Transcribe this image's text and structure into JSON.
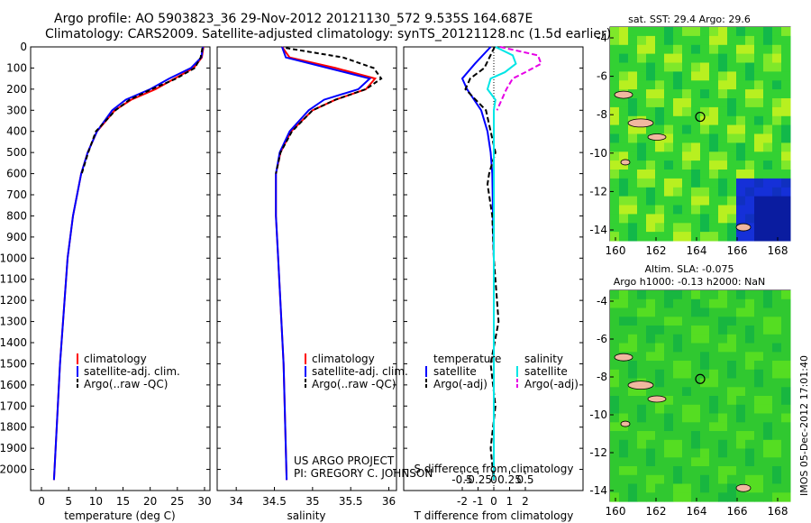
{
  "title_line1": "Argo profile: AO 5903823_36 29-Nov-2012 20121130_572 9.535S 164.687E",
  "title_line2": "Climatology: CARS2009. Satellite-adjusted climatology: synTS_20121128.nc (1.5d earlier)",
  "credit_line1": "US ARGO PROJECT",
  "credit_line2": "PI: GREGORY C. JOHNSON",
  "imos_stamp": "IMOS 05-Dec-2012 17:01:40",
  "depth_ticks": [
    "0",
    "100",
    "200",
    "300",
    "400",
    "500",
    "600",
    "700",
    "800",
    "900",
    "1000",
    "1100",
    "1200",
    "1300",
    "1400",
    "1500",
    "1600",
    "1700",
    "1800",
    "1900",
    "2000"
  ],
  "colors": {
    "climatology": "#ff0000",
    "satellite": "#0000ff",
    "argo": "#000000",
    "sat_salinity": "#00e5e5",
    "argo_salinity": "#e600e6",
    "land": "#f0b8a0",
    "ocean_green": "#22cc22"
  },
  "chart_data": [
    {
      "type": "line",
      "xlabel": "temperature (deg C)",
      "ylim": [
        2100,
        0
      ],
      "xlim": [
        -2,
        31
      ],
      "xticks": [
        "0",
        "5",
        "10",
        "15",
        "20",
        "25",
        "30"
      ],
      "legend": [
        "climatology",
        "satellite-adj. clim.",
        "Argo(..raw -QC)"
      ],
      "series": [
        {
          "name": "climatology",
          "depth": [
            0,
            50,
            100,
            150,
            200,
            250,
            300,
            400,
            500,
            600,
            800,
            1000,
            1500,
            2050
          ],
          "values": [
            29.8,
            29.5,
            28,
            24.5,
            21,
            16.5,
            13.5,
            10.2,
            8.5,
            7.3,
            5.8,
            4.8,
            3.4,
            2.3
          ]
        },
        {
          "name": "satellite-adj. clim.",
          "depth": [
            0,
            50,
            100,
            150,
            200,
            250,
            300,
            400,
            500,
            600,
            800,
            1000,
            1500,
            2050
          ],
          "values": [
            29.7,
            29.4,
            27.5,
            23.5,
            20,
            15.5,
            13,
            10.2,
            8.5,
            7.3,
            5.8,
            4.8,
            3.4,
            2.3
          ]
        },
        {
          "name": "Argo(..raw -QC)",
          "depth": [
            5,
            50,
            100,
            150,
            200,
            250,
            300,
            400,
            500,
            600
          ],
          "values": [
            29.6,
            29.3,
            28.2,
            24.8,
            20.3,
            16.2,
            13.6,
            10,
            8.6,
            7.4
          ]
        }
      ]
    },
    {
      "type": "line",
      "xlabel": "salinity",
      "ylim": [
        2100,
        0
      ],
      "xlim": [
        33.75,
        36.1
      ],
      "xticks": [
        "34",
        "34.5",
        "35",
        "35.5",
        "36"
      ],
      "legend": [
        "climatology",
        "satellite-adj. clim.",
        "Argo(..raw -QC)"
      ],
      "series": [
        {
          "name": "climatology",
          "depth": [
            0,
            50,
            100,
            150,
            200,
            250,
            300,
            400,
            500,
            600,
            800,
            1000,
            1500,
            2050
          ],
          "values": [
            34.6,
            34.7,
            35.3,
            35.82,
            35.7,
            35.3,
            35.0,
            34.72,
            34.58,
            34.52,
            34.52,
            34.55,
            34.62,
            34.66
          ]
        },
        {
          "name": "satellite-adj. clim.",
          "depth": [
            0,
            50,
            100,
            150,
            200,
            250,
            300,
            400,
            500,
            600,
            800,
            1000,
            1500,
            2050
          ],
          "values": [
            34.6,
            34.65,
            35.2,
            35.75,
            35.6,
            35.15,
            34.95,
            34.7,
            34.57,
            34.52,
            34.52,
            34.55,
            34.62,
            34.66
          ]
        },
        {
          "name": "Argo(..raw -QC)",
          "depth": [
            5,
            50,
            100,
            150,
            200,
            250,
            300,
            400,
            500,
            600
          ],
          "values": [
            34.65,
            35.4,
            35.8,
            35.9,
            35.7,
            35.3,
            35.0,
            34.73,
            34.58,
            34.52
          ]
        }
      ]
    },
    {
      "type": "line",
      "xlabel": "T difference from climatology",
      "xlabel2": "S difference from climatology",
      "ylim": [
        2100,
        0
      ],
      "xlim": [
        -2.8,
        2.8
      ],
      "xticks": [
        "-2",
        "-1",
        "0",
        "1",
        "2"
      ],
      "xticks_s": [
        "-0.5",
        "-0.25",
        "0",
        "0.25",
        "0.5"
      ],
      "legend": [
        "temperature",
        "satellite",
        "Argo(-adj)",
        "salinity",
        "satellite",
        "Argo(-adj)"
      ],
      "series": [
        {
          "name": "satellite",
          "depth": [
            0,
            80,
            150,
            200,
            300,
            400,
            500,
            600,
            800,
            1000,
            2050
          ],
          "values": [
            -0.2,
            -1.2,
            -2.0,
            -1.7,
            -0.8,
            -0.4,
            -0.2,
            -0.1,
            -0.05,
            0,
            0
          ]
        },
        {
          "name": "Argo(-adj)",
          "depth": [
            0,
            100,
            150,
            200,
            300,
            400,
            500,
            600,
            650,
            800,
            1000,
            1300,
            1500,
            1700,
            1900,
            2050
          ],
          "values": [
            0.05,
            -0.6,
            -1.5,
            -1.8,
            -0.5,
            -0.2,
            0.1,
            -0.3,
            -0.4,
            -0.1,
            0,
            0.3,
            -0.2,
            0.1,
            -0.2,
            0
          ]
        },
        {
          "name": "satellite",
          "depth": [
            0,
            40,
            80,
            120,
            150,
            200,
            250,
            300,
            400,
            500,
            800,
            1200,
            2050
          ],
          "values": [
            0.1,
            1.2,
            1.4,
            0.7,
            -0.2,
            -0.4,
            0.1,
            0,
            0,
            0,
            0,
            0,
            0
          ]
        },
        {
          "name": "Argo(-adj)",
          "depth": [
            0,
            40,
            80,
            120,
            150,
            200,
            300
          ],
          "values": [
            0.4,
            2.8,
            3.0,
            2.0,
            1.2,
            0.8,
            0.2
          ]
        }
      ]
    },
    {
      "type": "heatmap",
      "title": "sat. SST: 29.4 Argo: 29.6",
      "xticks": [
        "160",
        "162",
        "164",
        "166",
        "168"
      ],
      "yticks": [
        "-4",
        "-6",
        "-8",
        "-10",
        "-12",
        "-14"
      ]
    },
    {
      "type": "heatmap",
      "title": "Altim. SLA: -0.075",
      "title2": "Argo h1000: -0.13 h2000: NaN",
      "xticks": [
        "160",
        "162",
        "164",
        "166",
        "168"
      ],
      "yticks": [
        "-4",
        "-6",
        "-8",
        "-10",
        "-12",
        "-14"
      ]
    }
  ]
}
